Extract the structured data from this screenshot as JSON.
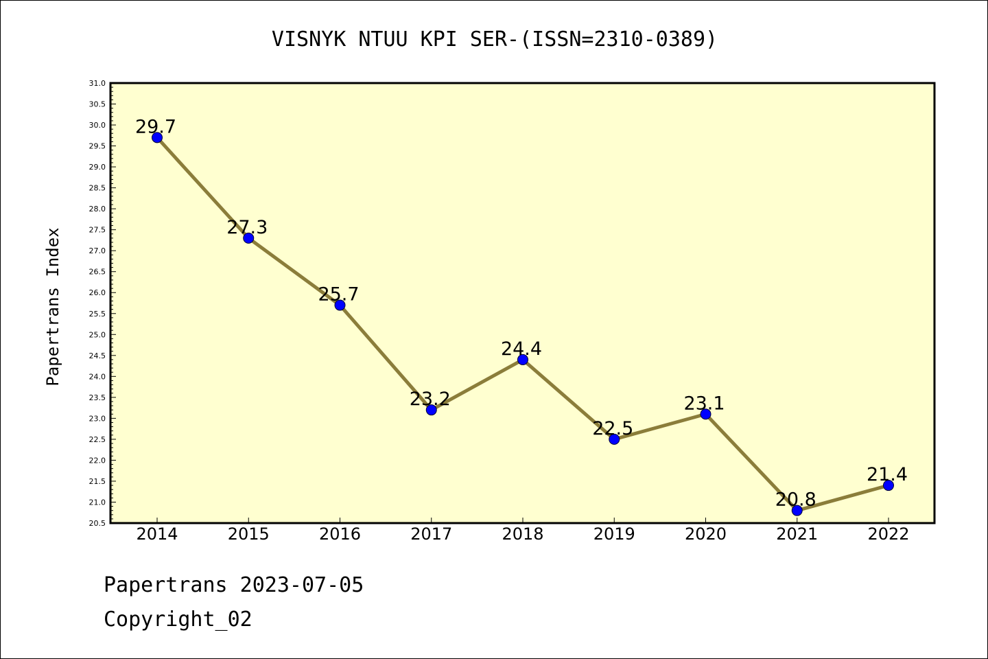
{
  "chart_data": {
    "type": "line",
    "title": "VISNYK NTUU KPI SER-(ISSN=2310-0389)",
    "xlabel": "",
    "ylabel": "Papertrans Index",
    "categories": [
      "2014",
      "2015",
      "2016",
      "2017",
      "2018",
      "2019",
      "2020",
      "2021",
      "2022"
    ],
    "series": [
      {
        "values": [
          29.7,
          27.3,
          25.7,
          23.2,
          24.4,
          22.5,
          23.1,
          20.8,
          21.4
        ],
        "data_labels": [
          "29.7",
          "27.3",
          "25.7",
          "23.2",
          "24.4",
          "22.5",
          "23.1",
          "20.8",
          "21.4"
        ]
      }
    ],
    "ylim": [
      20.5,
      31.0
    ],
    "yticks": [
      "20.5",
      "21.0",
      "21.5",
      "22.0",
      "22.5",
      "23.0",
      "23.5",
      "24.0",
      "24.5",
      "25.0",
      "25.5",
      "26.0",
      "26.5",
      "27.0",
      "27.5",
      "28.0",
      "28.5",
      "29.0",
      "29.5",
      "30.0",
      "30.5",
      "31.0"
    ],
    "grid": false,
    "legend": "none",
    "colors": {
      "plot_background": "#ffffd0",
      "line": "#8b7d3a",
      "marker": "#0000ff"
    }
  },
  "footer": {
    "line1": "Papertrans 2023-07-05",
    "line2": "Copyright_02"
  }
}
